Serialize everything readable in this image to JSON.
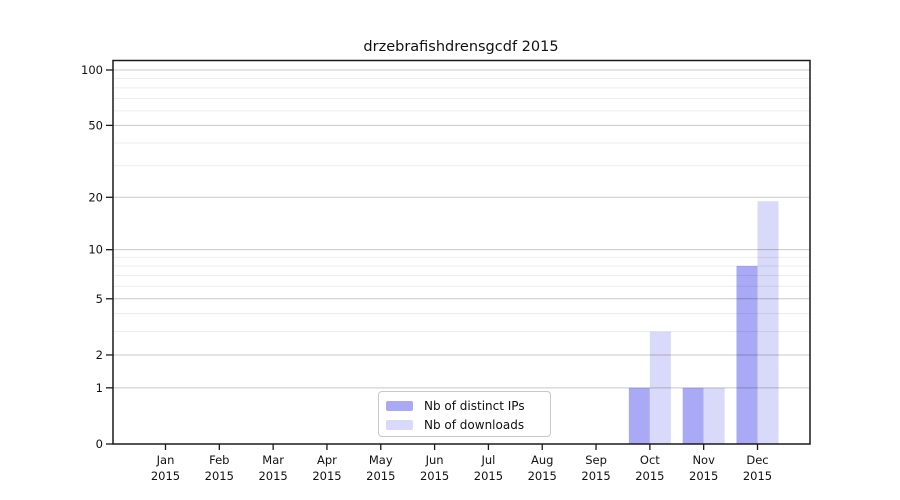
{
  "chart_data": {
    "type": "bar",
    "title": "drzebrafishdrensgcdf 2015",
    "categories": [
      {
        "month": "Jan",
        "year": "2015"
      },
      {
        "month": "Feb",
        "year": "2015"
      },
      {
        "month": "Mar",
        "year": "2015"
      },
      {
        "month": "Apr",
        "year": "2015"
      },
      {
        "month": "May",
        "year": "2015"
      },
      {
        "month": "Jun",
        "year": "2015"
      },
      {
        "month": "Jul",
        "year": "2015"
      },
      {
        "month": "Aug",
        "year": "2015"
      },
      {
        "month": "Sep",
        "year": "2015"
      },
      {
        "month": "Oct",
        "year": "2015"
      },
      {
        "month": "Nov",
        "year": "2015"
      },
      {
        "month": "Dec",
        "year": "2015"
      }
    ],
    "series": [
      {
        "name": "Nb of distinct IPs",
        "color": "#a9a9f6",
        "values": [
          0,
          0,
          0,
          0,
          0,
          0,
          0,
          0,
          0,
          1,
          1,
          8
        ]
      },
      {
        "name": "Nb of downloads",
        "color": "#d9d9f9",
        "values": [
          0,
          0,
          0,
          0,
          0,
          0,
          0,
          0,
          0,
          3,
          1,
          19
        ]
      }
    ],
    "y_axis": {
      "scale": "symlog",
      "ticks": [
        0,
        1,
        2,
        5,
        10,
        20,
        50,
        100
      ],
      "minor_gridlines": [
        3,
        4,
        6,
        7,
        8,
        9,
        30,
        40,
        60,
        70,
        80,
        90
      ]
    },
    "legend": {
      "position": "bottom-center"
    },
    "grid": "horizontal",
    "colors": {
      "major_grid": "rgba(0,0,0,0.215)",
      "minor_grid": "rgba(0,0,0,0.075)",
      "axis": "#1a1a1a",
      "text": "#111111"
    }
  }
}
